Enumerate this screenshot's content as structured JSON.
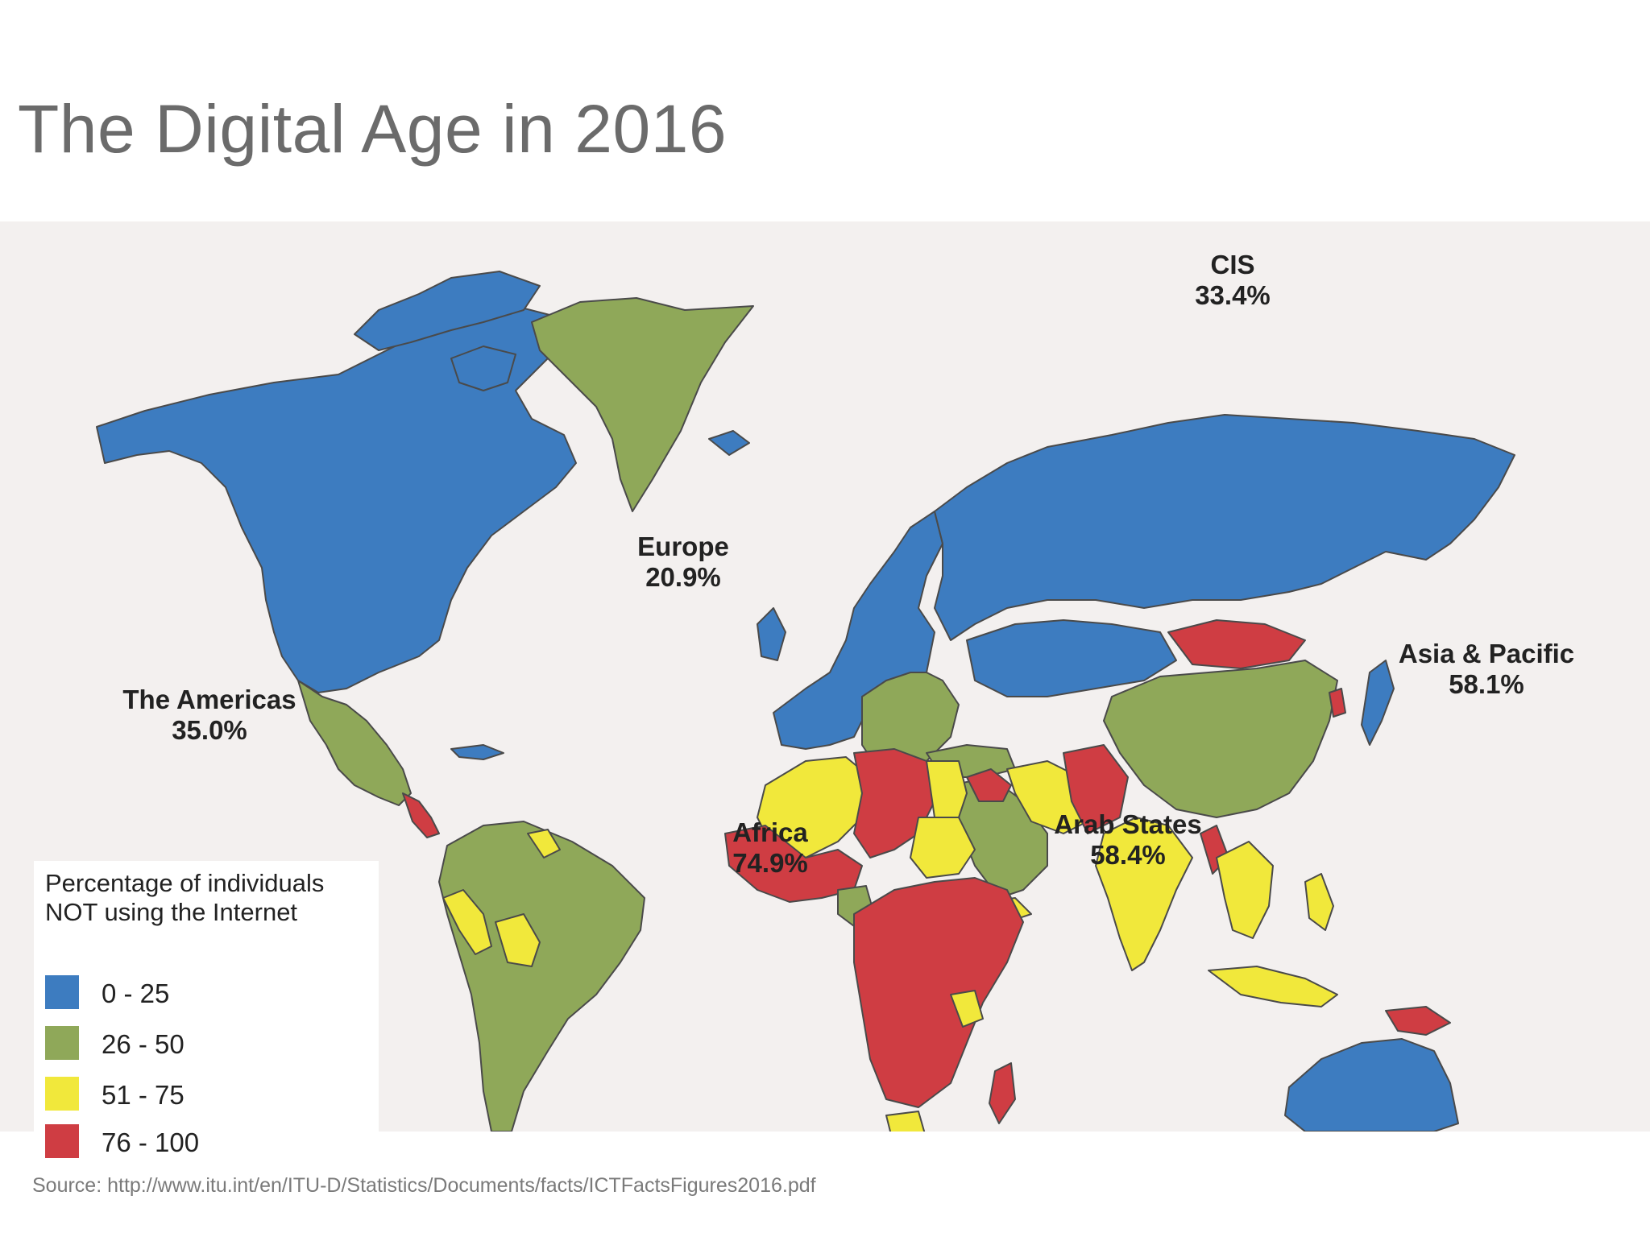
{
  "slide": {
    "title": "The Digital Age in 2016",
    "source": "Source: http://www.itu.int/en/ITU-D/Statistics/Documents/facts/ICTFactsFigures2016.pdf"
  },
  "map": {
    "regions": [
      {
        "name": "CIS",
        "value": "33.4%"
      },
      {
        "name": "Europe",
        "value": "20.9%"
      },
      {
        "name": "The Americas",
        "value": "35.0%"
      },
      {
        "name": "Asia & Pacific",
        "value": "58.1%"
      },
      {
        "name": "Africa",
        "value": "74.9%"
      },
      {
        "name": "Arab States",
        "value": "58.4%"
      }
    ],
    "colors": {
      "blue": "#3d7cc0",
      "green": "#8fa859",
      "yellow": "#f1e83b",
      "red": "#cf3d43",
      "border": "#4a4a4a",
      "background": "#f3f0ef"
    }
  },
  "legend": {
    "title_line1": "Percentage of individuals",
    "title_line2": "NOT using the Internet",
    "items": [
      {
        "label": "0 - 25",
        "color": "#3d7cc0"
      },
      {
        "label": "26 - 50",
        "color": "#8fa859"
      },
      {
        "label": "51 - 75",
        "color": "#f1e83b"
      },
      {
        "label": "76 - 100",
        "color": "#cf3d43"
      }
    ]
  }
}
